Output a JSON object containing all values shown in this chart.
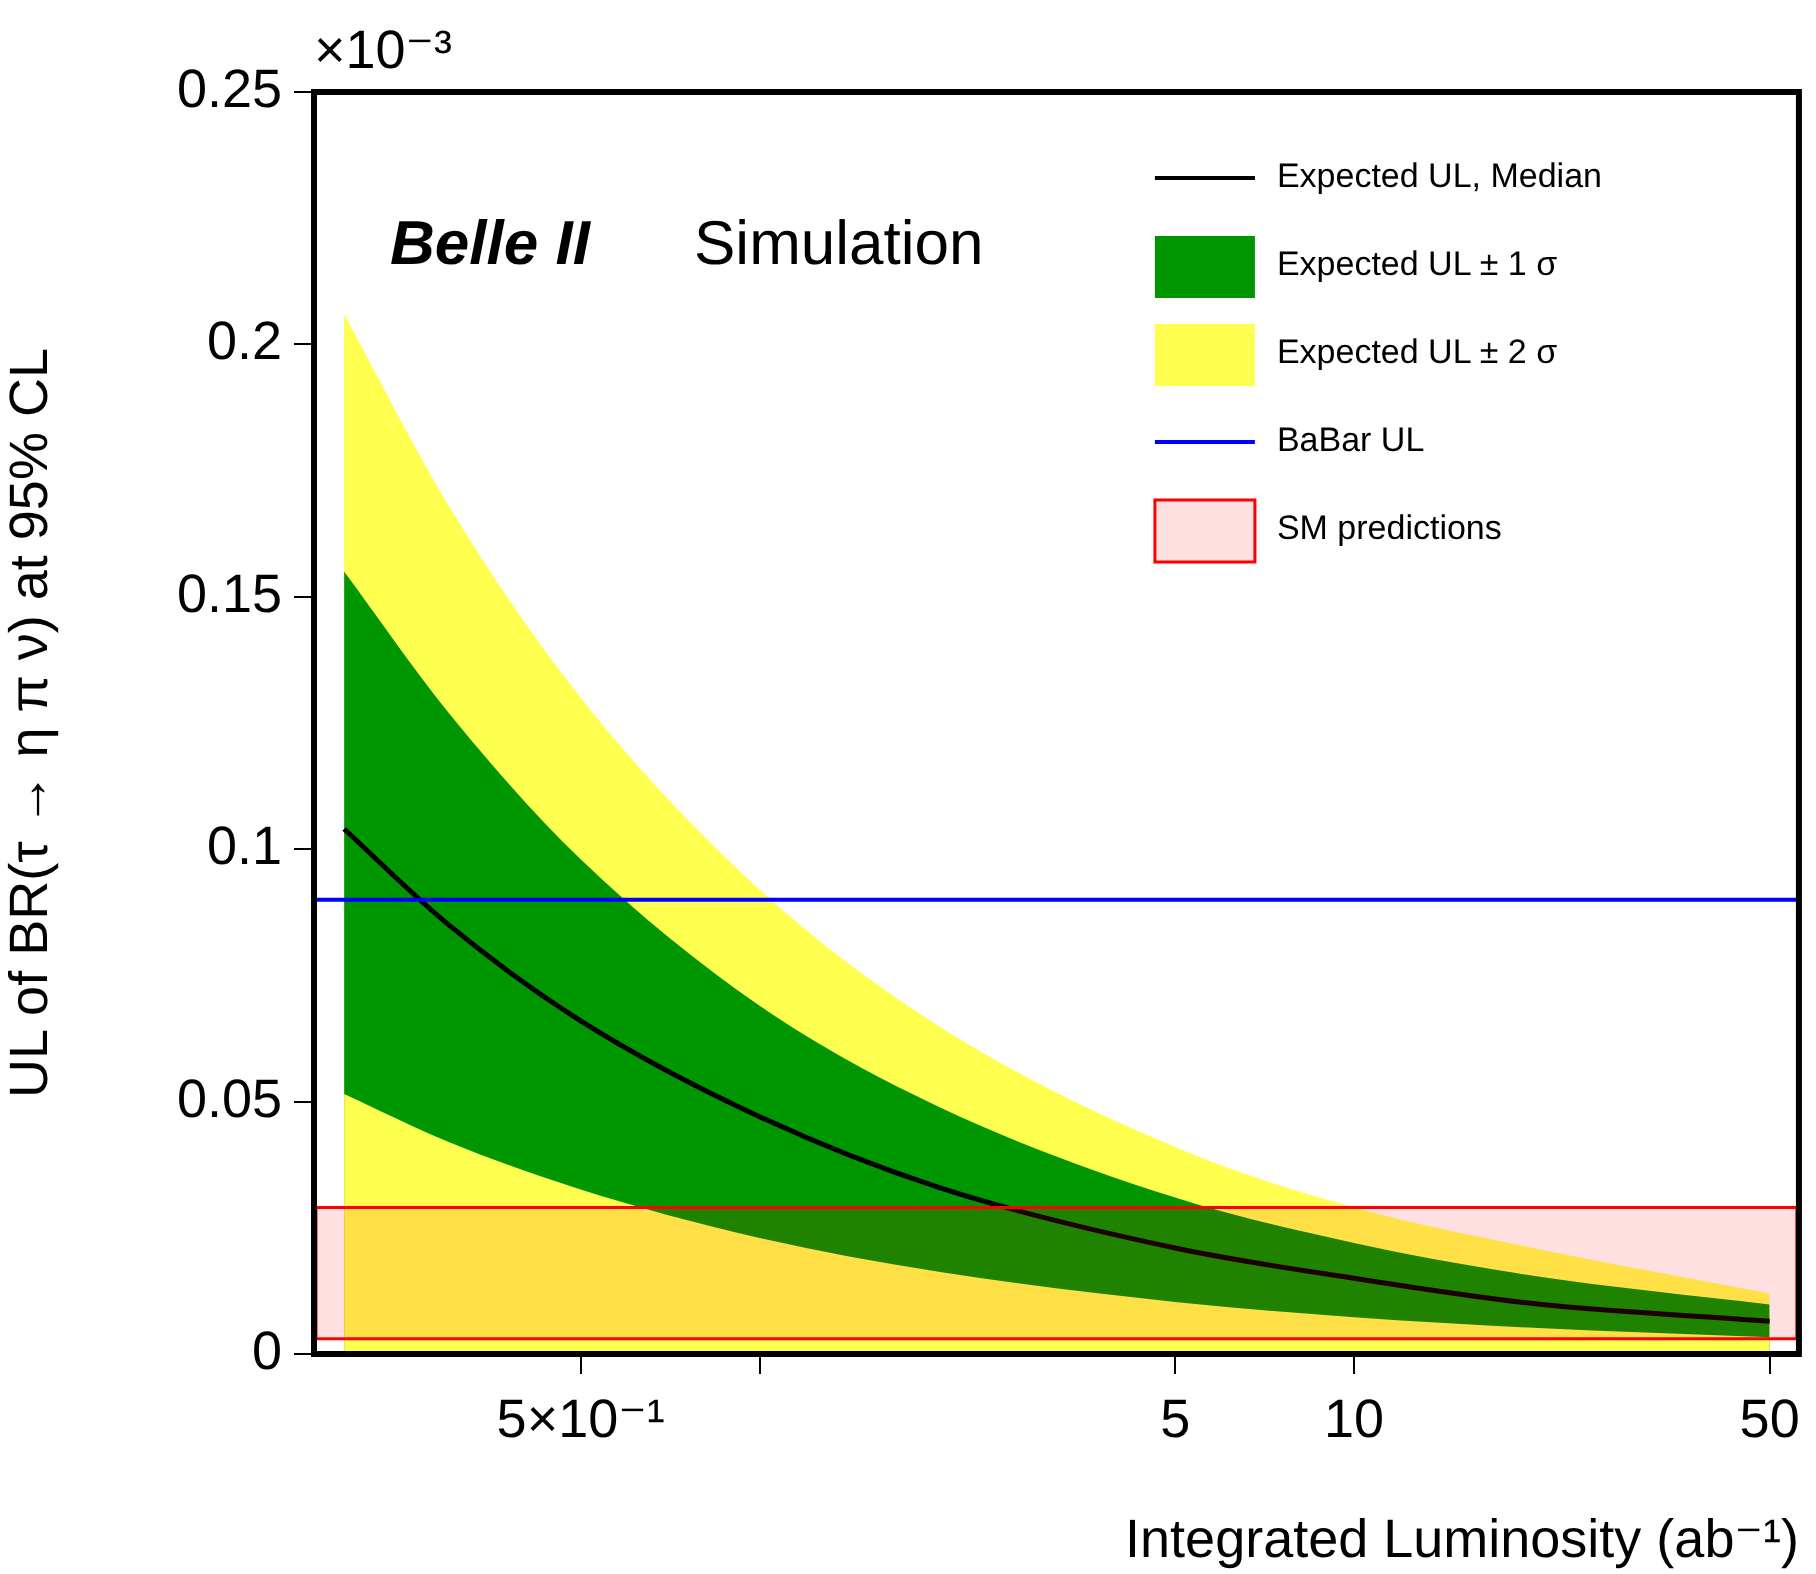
{
  "chart_data": {
    "type": "line",
    "xlabel": "Integrated Luminosity (ab⁻¹)",
    "ylabel": "UL of BR(τ → η π ν) at 95% CL",
    "annotations": [
      "Belle II",
      "Simulation",
      "×10⁻³"
    ],
    "x": [
      0.2,
      0.3,
      0.5,
      1,
      2,
      5,
      10,
      20,
      50
    ],
    "series": [
      {
        "name": "Expected UL, Median",
        "color": "#000000",
        "values": [
          0.104,
          0.085,
          0.066,
          0.047,
          0.033,
          0.021,
          0.015,
          0.01,
          0.0065
        ]
      },
      {
        "type": "area",
        "color": "#ffff50",
        "values": [
          0.0515,
          0.042,
          0.0326,
          0.023,
          0.0163,
          0.0103,
          0.0073,
          0.0052,
          0.0033
        ]
      },
      {
        "name": "Expected UL ± 1 σ",
        "type": "area",
        "color": "#009600",
        "values": [
          0.155,
          0.127,
          0.098,
          0.069,
          0.049,
          0.031,
          0.022,
          0.0155,
          0.0098
        ]
      },
      {
        "name": "Expected UL ± 2 σ",
        "type": "area",
        "color": "#ffff50",
        "values": [
          0.206,
          0.168,
          0.13,
          0.092,
          0.065,
          0.041,
          0.029,
          0.021,
          0.012
        ]
      }
    ],
    "ref_lines": [
      {
        "axis": "y",
        "value": 0.09,
        "label": "BaBar UL",
        "color": "#0000ff"
      }
    ],
    "bands": [
      {
        "axis": "y",
        "from": 0.003,
        "to": 0.029,
        "label": "SM predictions",
        "color": "#ff0000"
      }
    ],
    "log": "x",
    "xlim": [
      0.178,
      56
    ],
    "xticks": [
      {
        "value": 0.5,
        "label": "5×10⁻¹"
      },
      {
        "value": 1,
        "label": null
      },
      5,
      10,
      50
    ],
    "ylim": [
      0,
      0.25
    ],
    "yticks": [
      0,
      0.05,
      0.1,
      0.15,
      0.2,
      0.25
    ],
    "grid": false,
    "legend": "top right"
  }
}
